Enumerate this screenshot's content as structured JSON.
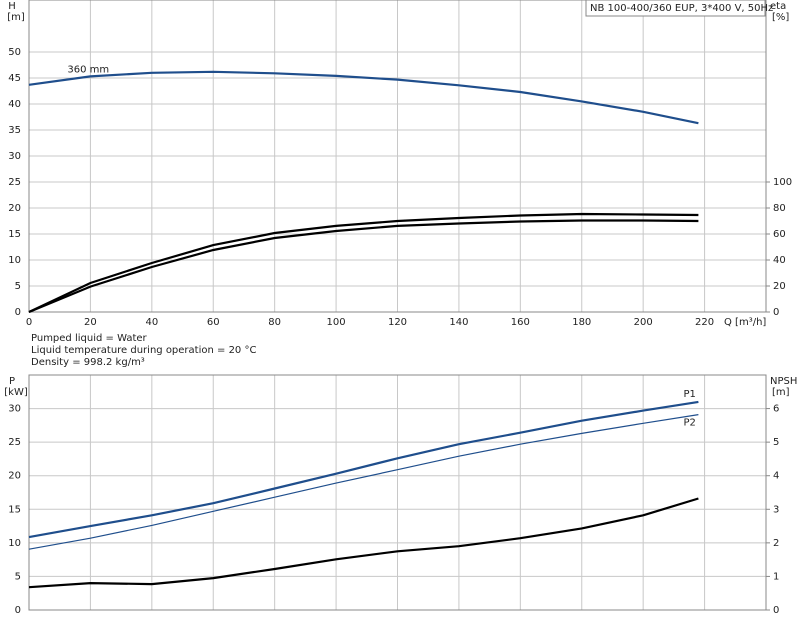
{
  "title": "NB 100-400/360 EUP, 3*400 V, 50Hz",
  "notes": [
    "Pumped liquid = Water",
    "Liquid temperature during operation = 20 °C",
    "Density = 998.2 kg/m³"
  ],
  "chart_data": [
    {
      "type": "line",
      "ylabel": "H",
      "yunit": "[m]",
      "y2label": "eta",
      "y2unit": "[%]",
      "xlabel": "Q [m³/h]",
      "x": [
        0,
        20,
        40,
        60,
        80,
        100,
        120,
        140,
        160,
        180,
        200,
        218
      ],
      "xlim": [
        0,
        240
      ],
      "xticks": [
        0,
        20,
        40,
        60,
        80,
        100,
        120,
        140,
        160,
        180,
        200,
        220
      ],
      "xtick_labels": true,
      "ylim": [
        0,
        60
      ],
      "yticks": [
        0,
        5,
        10,
        15,
        20,
        25,
        30,
        35,
        40,
        45,
        50
      ],
      "y2lim": [
        0,
        240
      ],
      "y2ticks": [
        0,
        20,
        40,
        60,
        80,
        100
      ],
      "grid": true,
      "series": [
        {
          "name": "360 mm",
          "color": "#1f4e8c",
          "width": 2.2,
          "label_at": "start",
          "values": [
            43.7,
            45.3,
            46.0,
            46.2,
            45.9,
            45.4,
            44.7,
            43.6,
            42.3,
            40.5,
            38.5,
            36.3
          ]
        },
        {
          "color": "#000000",
          "width": 2.2,
          "axis": "y2",
          "values": [
            0,
            22.3,
            37.7,
            51.5,
            60.8,
            66.2,
            70,
            72.3,
            74.2,
            75.4,
            75,
            74.6
          ]
        },
        {
          "color": "#000000",
          "width": 2.2,
          "axis": "y2",
          "values": [
            0,
            19.5,
            34.6,
            47.7,
            56.9,
            62.3,
            66.2,
            68.1,
            69.6,
            70.4,
            70.4,
            70
          ]
        }
      ]
    },
    {
      "type": "line",
      "ylabel": "P",
      "yunit": "[kW]",
      "y2label": "NPSH",
      "y2unit": "[m]",
      "x": [
        0,
        20,
        40,
        60,
        80,
        100,
        120,
        140,
        160,
        180,
        200,
        218
      ],
      "xlim": [
        0,
        240
      ],
      "xticks": [
        0,
        20,
        40,
        60,
        80,
        100,
        120,
        140,
        160,
        180,
        200,
        220
      ],
      "xtick_labels": false,
      "ylim": [
        0,
        35
      ],
      "yticks": [
        0,
        5,
        10,
        15,
        20,
        25,
        30
      ],
      "y2lim": [
        0,
        7
      ],
      "y2ticks": [
        0,
        1,
        2,
        3,
        4,
        5,
        6
      ],
      "grid": true,
      "series": [
        {
          "name": "P1",
          "color": "#1f4e8c",
          "width": 2.2,
          "label_at": "end",
          "values": [
            10.85,
            12.5,
            14.1,
            15.9,
            18.1,
            20.3,
            22.6,
            24.7,
            26.4,
            28.2,
            29.7,
            31.0
          ]
        },
        {
          "name": "P2",
          "color": "#1f4e8c",
          "width": 1.2,
          "label_at": "end",
          "values": [
            9.05,
            10.7,
            12.6,
            14.7,
            16.8,
            18.9,
            20.9,
            22.9,
            24.7,
            26.3,
            27.8,
            29.1
          ]
        },
        {
          "color": "#000000",
          "width": 2.2,
          "axis": "y2",
          "values": [
            0.68,
            0.8,
            0.77,
            0.95,
            1.22,
            1.51,
            1.75,
            1.9,
            2.14,
            2.43,
            2.82,
            3.32
          ]
        }
      ]
    }
  ]
}
